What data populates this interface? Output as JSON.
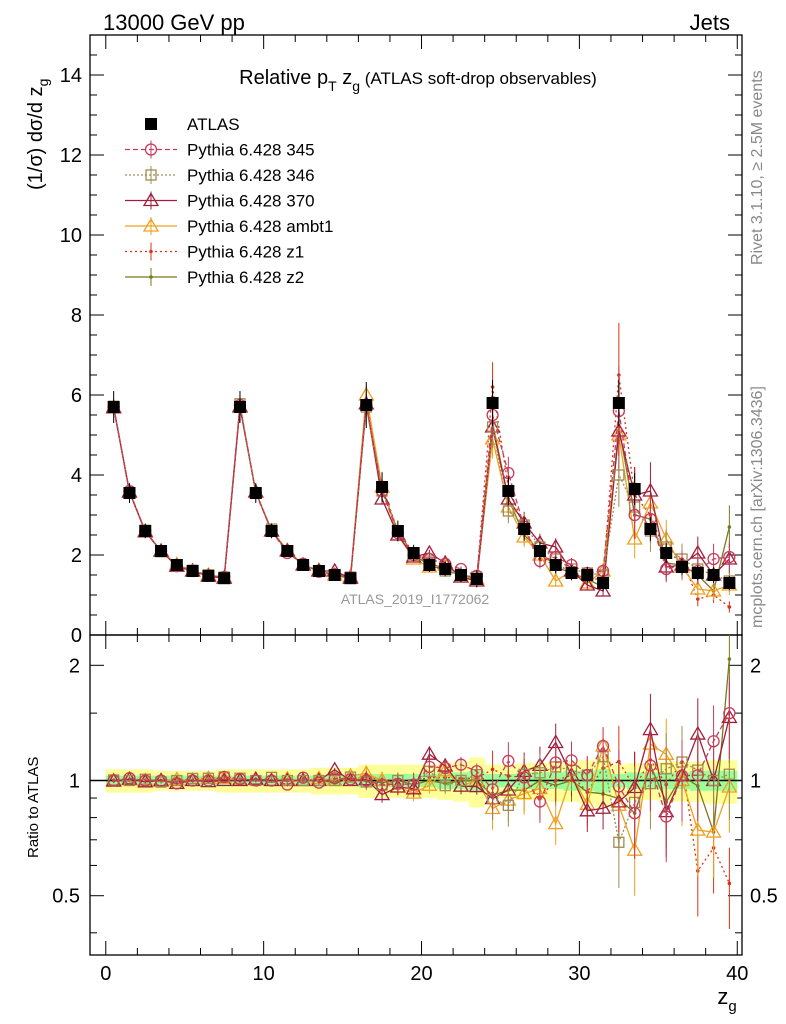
{
  "header": {
    "left": "13000 GeV pp",
    "right": "Jets"
  },
  "side_labels": {
    "rivet": "Rivet 3.1.10, ≥ 2.5M events",
    "mcplots": "mcplots.cern.ch [arXiv:1306.3436]"
  },
  "chart_data": [
    {
      "type": "line",
      "title_main": "Relative p",
      "title_sub_T": "T",
      "title_var": " z",
      "title_sub_g": "g",
      "title_tail": " (ATLAS soft-drop observables)",
      "ylabel": "(1/σ) dσ/d z",
      "ylabel_sub": "g",
      "analysis_label": "ATLAS_2019_I1772062",
      "xlim": [
        -1,
        40.3
      ],
      "ylim": [
        0,
        15
      ],
      "y_ticks": [
        0,
        2,
        4,
        6,
        8,
        10,
        12,
        14
      ],
      "x": [
        0.5,
        1.5,
        2.5,
        3.5,
        4.5,
        5.5,
        6.5,
        7.5,
        8.5,
        9.5,
        10.5,
        11.5,
        12.5,
        13.5,
        14.5,
        15.5,
        16.5,
        17.5,
        18.5,
        19.5,
        20.5,
        21.5,
        22.5,
        23.5,
        24.5,
        25.5,
        26.5,
        27.5,
        28.5,
        29.5,
        30.5,
        31.5,
        32.5,
        33.5,
        34.5,
        35.5,
        36.5,
        37.5,
        38.5,
        39.5
      ],
      "series": [
        {
          "name": "ATLAS",
          "color": "#000000",
          "marker": "square-filled",
          "dash": "none",
          "values": [
            5.7,
            3.55,
            2.6,
            2.1,
            1.75,
            1.6,
            1.48,
            1.42,
            5.7,
            3.55,
            2.6,
            2.1,
            1.75,
            1.6,
            1.5,
            1.42,
            5.75,
            3.7,
            2.6,
            2.05,
            1.75,
            1.65,
            1.5,
            1.4,
            5.8,
            3.6,
            2.65,
            2.1,
            1.75,
            1.55,
            1.5,
            1.3,
            5.8,
            3.65,
            2.65,
            2.05,
            1.7,
            1.55,
            1.5,
            1.3
          ]
        },
        {
          "name": "Pythia 6.428 345",
          "color": "#c83c5a",
          "marker": "circle-open",
          "dash": "5,3",
          "values": [
            5.7,
            3.6,
            2.6,
            2.1,
            1.72,
            1.6,
            1.48,
            1.45,
            5.75,
            3.55,
            2.6,
            2.05,
            1.78,
            1.58,
            1.52,
            1.43,
            5.75,
            3.6,
            2.55,
            2.0,
            1.9,
            1.78,
            1.65,
            1.48,
            5.5,
            4.05,
            2.7,
            1.85,
            1.95,
            1.75,
            1.55,
            1.6,
            5.6,
            3.0,
            2.9,
            1.65,
            1.75,
            1.6,
            1.9,
            1.95
          ]
        },
        {
          "name": "Pythia 6.428 346",
          "color": "#a08c50",
          "marker": "square-open",
          "dash": "2,2",
          "values": [
            5.72,
            3.55,
            2.62,
            2.08,
            1.75,
            1.62,
            1.5,
            1.45,
            5.78,
            3.55,
            2.65,
            2.1,
            1.75,
            1.6,
            1.5,
            1.45,
            5.7,
            3.6,
            2.6,
            2.0,
            1.85,
            1.6,
            1.5,
            1.45,
            5.2,
            3.1,
            2.75,
            2.2,
            1.9,
            1.65,
            1.55,
            1.5,
            4.0,
            3.2,
            2.6,
            2.2,
            1.9,
            1.65,
            1.5,
            1.35
          ]
        },
        {
          "name": "Pythia 6.428 370",
          "color": "#a01e3c",
          "marker": "triangle-open",
          "dash": "none",
          "values": [
            5.68,
            3.58,
            2.58,
            2.1,
            1.72,
            1.6,
            1.47,
            1.42,
            5.7,
            3.58,
            2.6,
            2.1,
            1.75,
            1.6,
            1.6,
            1.42,
            5.78,
            3.4,
            2.5,
            1.95,
            2.05,
            1.8,
            1.45,
            1.35,
            5.2,
            3.4,
            2.8,
            2.3,
            2.2,
            1.6,
            1.25,
            1.1,
            5.1,
            3.5,
            3.6,
            1.7,
            1.75,
            2.05,
            1.5,
            1.9
          ]
        },
        {
          "name": "Pythia 6.428 ambt1",
          "color": "#f0a01e",
          "marker": "triangle-open",
          "dash": "none",
          "values": [
            5.7,
            3.57,
            2.6,
            2.09,
            1.76,
            1.6,
            1.5,
            1.44,
            5.72,
            3.57,
            2.6,
            2.12,
            1.75,
            1.62,
            1.5,
            1.46,
            6.0,
            3.7,
            2.5,
            1.9,
            1.7,
            1.75,
            1.45,
            1.4,
            4.9,
            3.2,
            2.45,
            2.0,
            1.35,
            1.6,
            1.3,
            1.6,
            5.0,
            2.4,
            3.3,
            2.4,
            1.7,
            1.15,
            1.1,
            1.25
          ]
        },
        {
          "name": "Pythia 6.428 z1",
          "color": "#dc3214",
          "marker": "dot",
          "dash": "2,3",
          "values": [
            5.7,
            3.56,
            2.6,
            2.1,
            1.75,
            1.6,
            1.48,
            1.43,
            5.72,
            3.56,
            2.6,
            2.1,
            1.76,
            1.6,
            1.5,
            1.44,
            5.85,
            3.72,
            2.6,
            2.05,
            1.78,
            1.68,
            1.52,
            1.42,
            6.2,
            3.7,
            2.7,
            1.9,
            1.75,
            1.6,
            1.4,
            1.4,
            6.5,
            3.5,
            3.0,
            2.0,
            1.9,
            0.9,
            1.0,
            0.7
          ]
        },
        {
          "name": "Pythia 6.428 z2",
          "color": "#78781e",
          "marker": "dot",
          "dash": "none",
          "values": [
            5.7,
            3.57,
            2.6,
            2.1,
            1.75,
            1.6,
            1.48,
            1.43,
            5.7,
            3.57,
            2.6,
            2.1,
            1.75,
            1.6,
            1.48,
            1.43,
            5.75,
            3.65,
            2.6,
            2.0,
            1.75,
            1.62,
            1.5,
            1.4,
            5.3,
            3.4,
            2.5,
            2.1,
            1.7,
            1.55,
            1.4,
            1.2,
            5.2,
            3.0,
            2.9,
            1.8,
            1.75,
            1.5,
            1.1,
            2.7
          ]
        }
      ]
    },
    {
      "type": "line",
      "ylabel": "Ratio to ATLAS",
      "xlabel": "z",
      "xlabel_sub": "g",
      "xlim": [
        -1,
        40.3
      ],
      "ylim": [
        0.35,
        2.4
      ],
      "y_tick_labels": [
        "0.5",
        "1",
        "2"
      ],
      "y_tick_values": [
        0.5,
        1,
        2
      ],
      "x_tick_labels": [
        "0",
        "10",
        "20",
        "30",
        "40"
      ],
      "x_tick_values": [
        0,
        10,
        20,
        30,
        40
      ],
      "band_inner": [
        0.03,
        0.03,
        0.03,
        0.03,
        0.03,
        0.03,
        0.03,
        0.03,
        0.03,
        0.03,
        0.03,
        0.03,
        0.03,
        0.03,
        0.03,
        0.03,
        0.04,
        0.04,
        0.04,
        0.04,
        0.04,
        0.05,
        0.05,
        0.06,
        0.04,
        0.04,
        0.05,
        0.05,
        0.05,
        0.06,
        0.06,
        0.07,
        0.04,
        0.05,
        0.05,
        0.05,
        0.05,
        0.06,
        0.06,
        0.06
      ],
      "band_outer": [
        0.07,
        0.07,
        0.07,
        0.06,
        0.06,
        0.06,
        0.06,
        0.07,
        0.07,
        0.07,
        0.07,
        0.07,
        0.07,
        0.08,
        0.08,
        0.08,
        0.1,
        0.1,
        0.1,
        0.1,
        0.1,
        0.11,
        0.12,
        0.15,
        0.1,
        0.1,
        0.11,
        0.11,
        0.12,
        0.12,
        0.13,
        0.15,
        0.1,
        0.11,
        0.11,
        0.12,
        0.12,
        0.12,
        0.13,
        0.13
      ]
    }
  ]
}
